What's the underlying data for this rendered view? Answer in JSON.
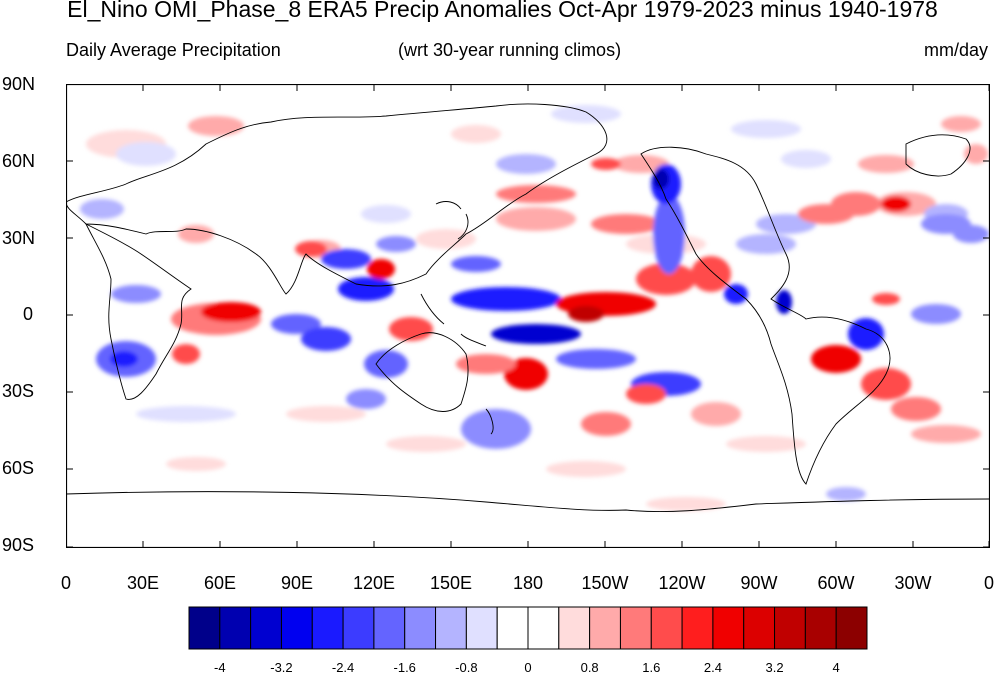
{
  "title": "El_Nino OMI_Phase_8 ERA5 Precip Anomalies Oct-Apr 1979-2023 minus 1940-1978",
  "subtitle_left": "Daily Average Precipitation",
  "subtitle_center": "(wrt 30-year running climos)",
  "subtitle_right": "mm/day",
  "lat_labels": [
    "90N",
    "60N",
    "30N",
    "0",
    "30S",
    "60S",
    "90S"
  ],
  "lon_labels": [
    "0",
    "30E",
    "60E",
    "90E",
    "120E",
    "150E",
    "180",
    "150W",
    "120W",
    "90W",
    "60W",
    "30W",
    "0"
  ],
  "colorbar": {
    "colors": [
      "#00008a",
      "#0000b0",
      "#0000d0",
      "#0000f0",
      "#1a1aff",
      "#3c3cff",
      "#6464ff",
      "#8c8cff",
      "#b4b4ff",
      "#e0e0ff",
      "#ffffff",
      "#ffffff",
      "#ffdcdc",
      "#ffaaaa",
      "#ff7a7a",
      "#ff4c4c",
      "#ff1e1e",
      "#f00000",
      "#dc0000",
      "#c00000",
      "#a80000",
      "#8c0000"
    ],
    "tick_labels": [
      "-4",
      "-3.2",
      "-2.4",
      "-1.6",
      "-0.8",
      "0",
      "0.8",
      "1.6",
      "2.4",
      "3.2",
      "4"
    ]
  }
}
